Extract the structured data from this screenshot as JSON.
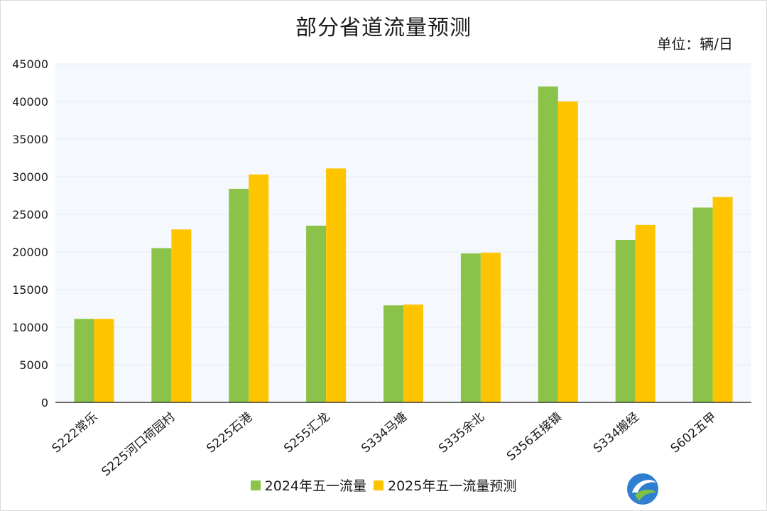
{
  "colors": {
    "series_2024": "#8bc34a",
    "series_2025": "#ffc400",
    "plot_bg": "#f5f9fd",
    "grid": "#e3ecf5",
    "axis": "#333333"
  },
  "chart_data": {
    "type": "bar",
    "title": "部分省道流量预测",
    "unit": "单位：辆/日",
    "categories": [
      "S222常乐",
      "S225河口荷园村",
      "S225石港",
      "S255汇龙",
      "S334马塘",
      "S335余北",
      "S356五接镇",
      "S334搬经",
      "S602五甲"
    ],
    "series": [
      {
        "name": "2024年五一流量",
        "values": [
          11100,
          20500,
          28400,
          23500,
          12900,
          19800,
          42000,
          21600,
          25900
        ]
      },
      {
        "name": "2025年五一流量预测",
        "values": [
          11100,
          23000,
          30300,
          31100,
          13000,
          19900,
          40000,
          23600,
          27300
        ]
      }
    ],
    "ylim": [
      0,
      45000
    ],
    "yticks": [
      0,
      5000,
      10000,
      15000,
      20000,
      25000,
      30000,
      35000,
      40000,
      45000
    ],
    "grid": true,
    "legend_position": "bottom"
  }
}
